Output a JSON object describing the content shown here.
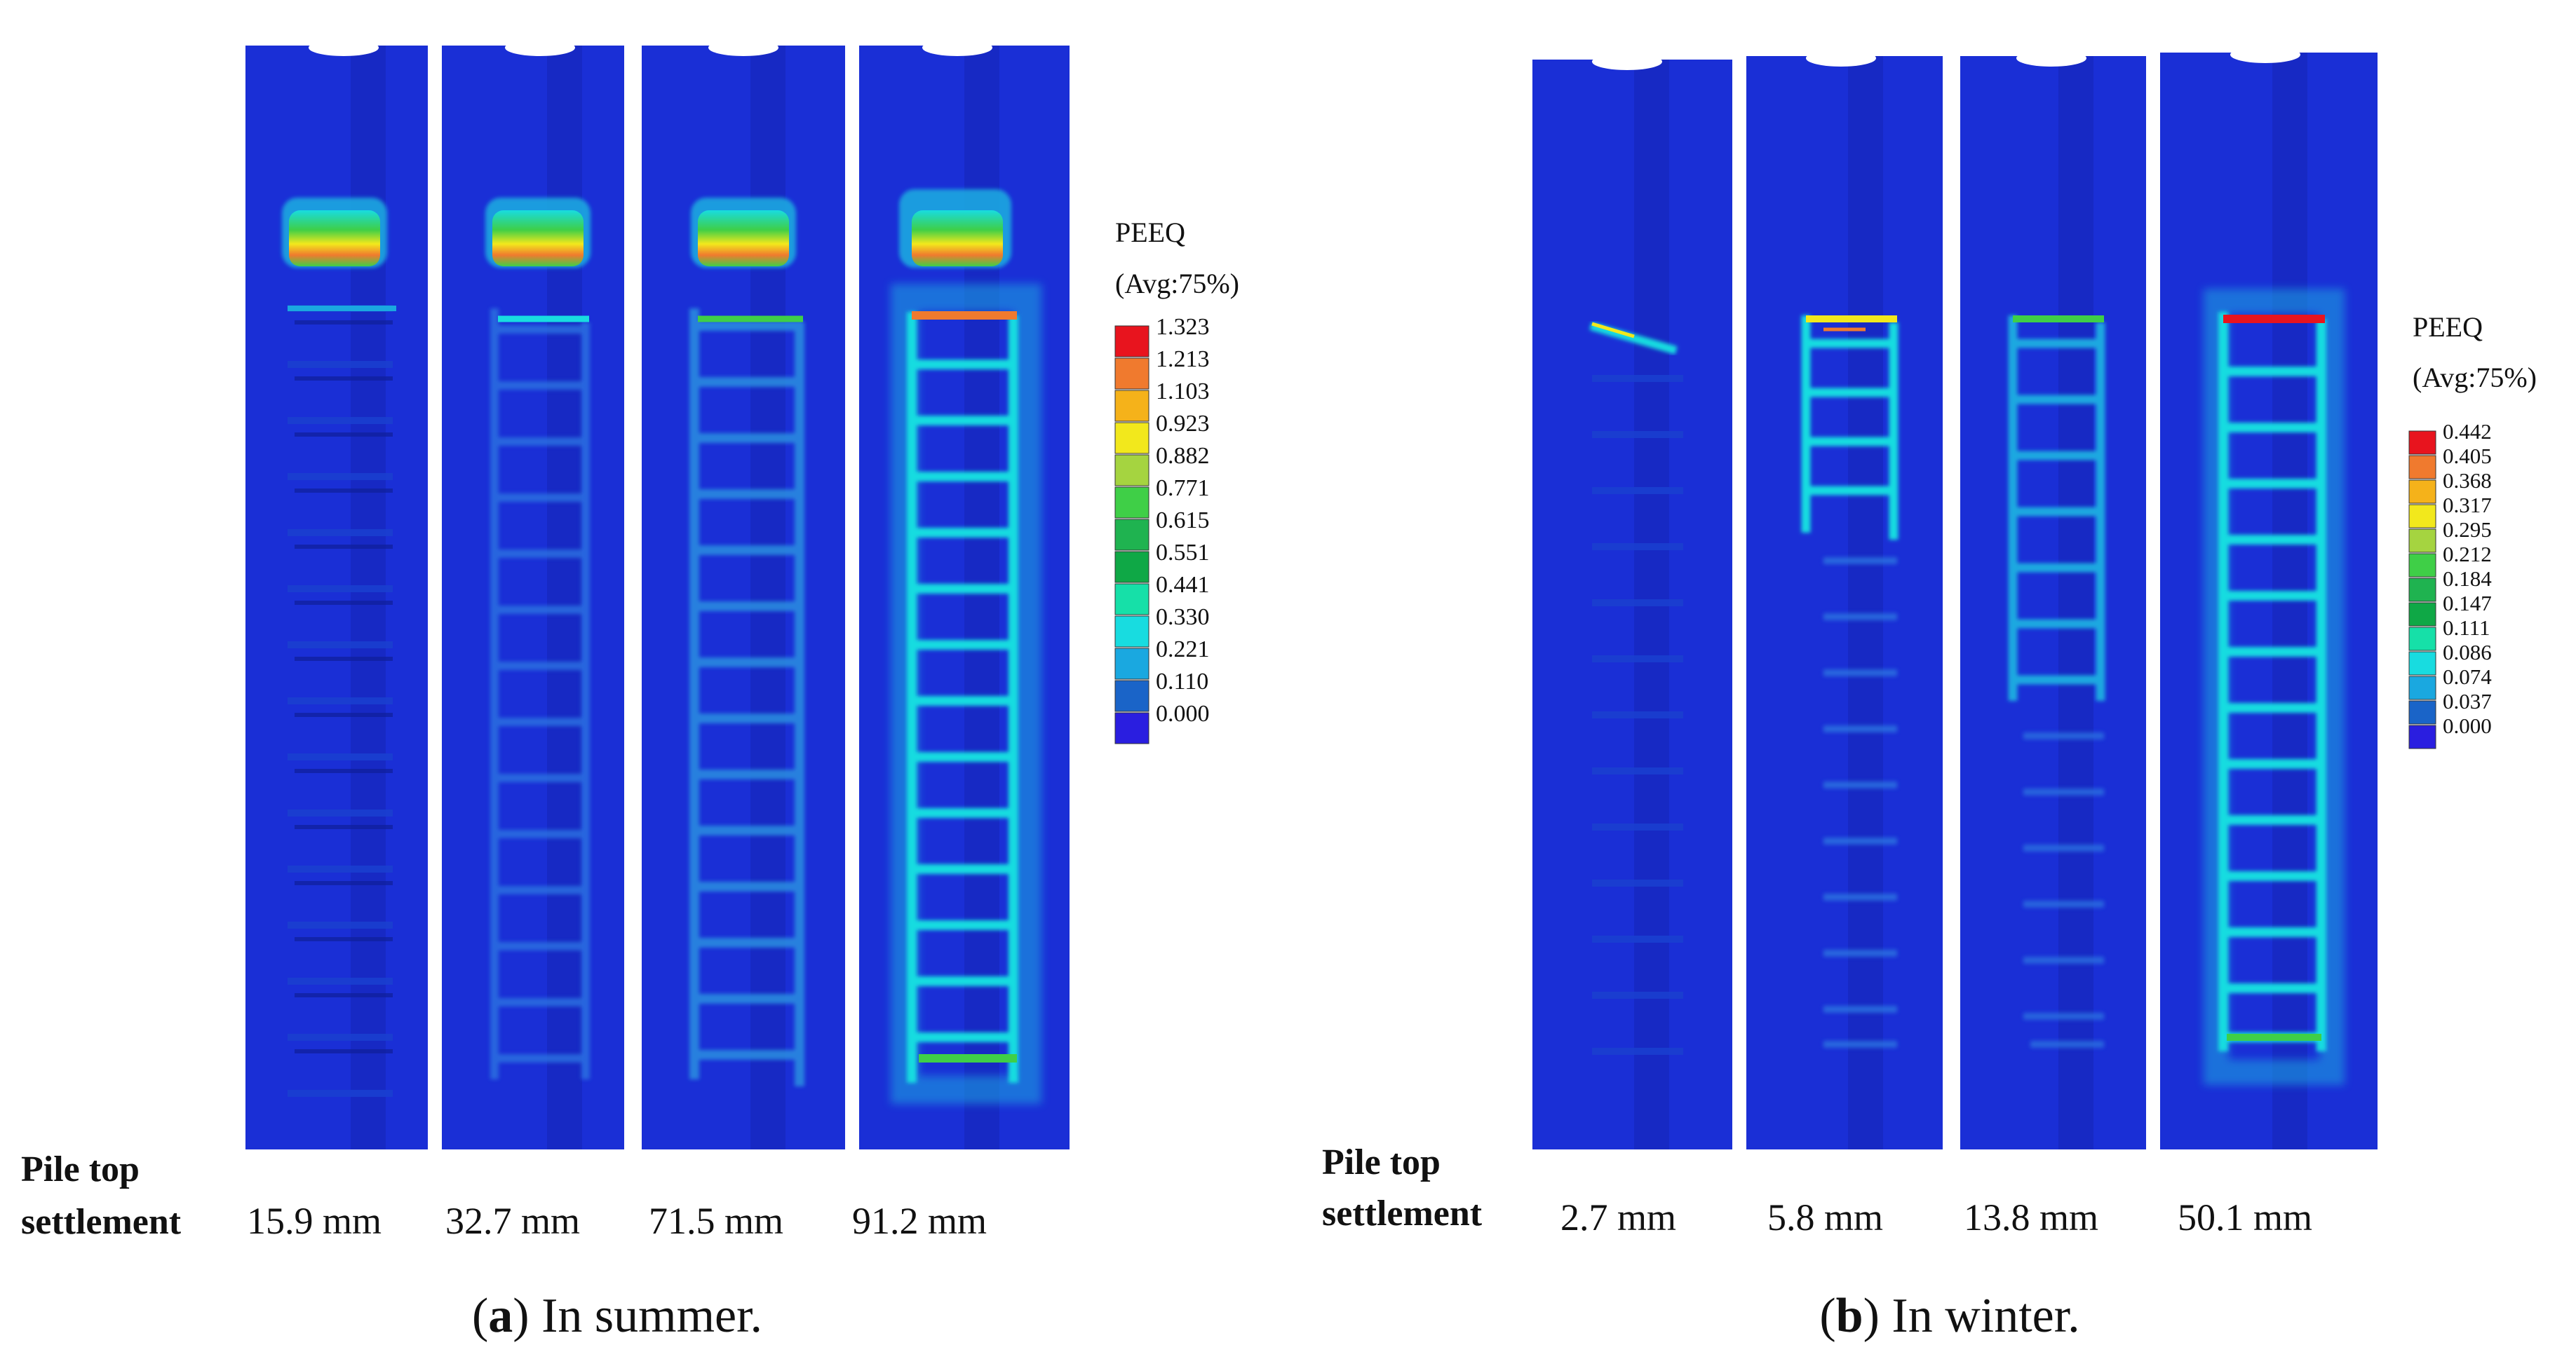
{
  "panel_a": {
    "legend": {
      "title": "PEEQ",
      "subtitle": "(Avg:75%)",
      "values": [
        "1.323",
        "1.213",
        "1.103",
        "0.923",
        "0.882",
        "0.771",
        "0.615",
        "0.551",
        "0.441",
        "0.330",
        "0.221",
        "0.110",
        "0.000"
      ]
    },
    "settlement_label_line1": "Pile top",
    "settlement_label_line2": "settlement",
    "settlements": [
      "15.9 mm",
      "32.7 mm",
      "71.5 mm",
      "91.2 mm"
    ],
    "caption_letter": "a",
    "caption_text": " In summer.",
    "caption_open": "(",
    "caption_close": ")"
  },
  "panel_b": {
    "legend": {
      "title": "PEEQ",
      "subtitle": "(Avg:75%)",
      "values": [
        "0.442",
        "0.405",
        "0.368",
        "0.317",
        "0.295",
        "0.212",
        "0.184",
        "0.147",
        "0.111",
        "0.086",
        "0.074",
        "0.037",
        "0.000"
      ]
    },
    "settlement_label_line1": "Pile top",
    "settlement_label_line2": "settlement",
    "settlements": [
      "2.7 mm",
      "5.8 mm",
      "13.8 mm",
      "50.1 mm"
    ],
    "caption_letter": "b",
    "caption_text": " In winter.",
    "caption_open": "(",
    "caption_close": ")"
  },
  "colors": {
    "background_model": "#1a2fd6",
    "scale": [
      "#e8141e",
      "#f07a2e",
      "#f5b21a",
      "#f2e81c",
      "#a5d440",
      "#3fcf47",
      "#1fb350",
      "#0fa846",
      "#16e0a8",
      "#18dce0",
      "#1aa8e0",
      "#1a64c8",
      "#2a1ee0"
    ]
  }
}
